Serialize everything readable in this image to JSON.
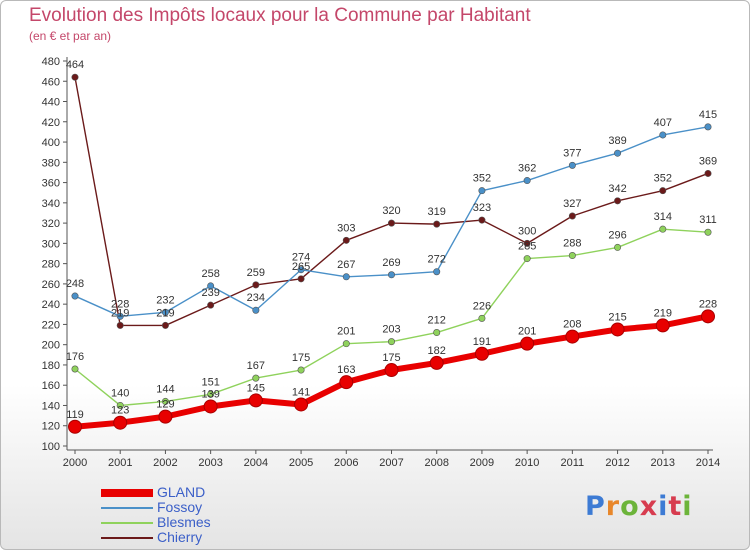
{
  "header": {
    "title": "Evolution des Impôts locaux pour la Commune par Habitant",
    "subtitle": "(en € et par an)"
  },
  "logo_text": "Proxiti",
  "chart_data": {
    "type": "line",
    "title": "Evolution des Impôts locaux pour la Commune par Habitant",
    "subtitle": "(en € et par an)",
    "xlabel": "",
    "ylabel": "",
    "x": [
      2000,
      2001,
      2002,
      2003,
      2004,
      2005,
      2006,
      2007,
      2008,
      2009,
      2010,
      2011,
      2012,
      2013,
      2014
    ],
    "ylim": [
      100,
      480
    ],
    "ytick_step": 20,
    "grid": false,
    "legend_position": "bottom-left",
    "series": [
      {
        "name": "GLAND",
        "color": "#e80000",
        "values": [
          119,
          123,
          129,
          139,
          145,
          141,
          163,
          175,
          182,
          191,
          201,
          208,
          215,
          219,
          228
        ]
      },
      {
        "name": "Fossoy",
        "color": "#4a90c8",
        "values": [
          248,
          228,
          232,
          258,
          234,
          274,
          267,
          269,
          272,
          352,
          362,
          377,
          389,
          407,
          415
        ]
      },
      {
        "name": "Blesmes",
        "color": "#8fd25c",
        "values": [
          176,
          140,
          144,
          151,
          167,
          175,
          201,
          203,
          212,
          226,
          285,
          288,
          296,
          314,
          311
        ]
      },
      {
        "name": "Chierry",
        "color": "#6b1a1a",
        "values": [
          464,
          219,
          219,
          239,
          259,
          265,
          303,
          320,
          319,
          323,
          300,
          327,
          342,
          352,
          369
        ]
      }
    ]
  }
}
